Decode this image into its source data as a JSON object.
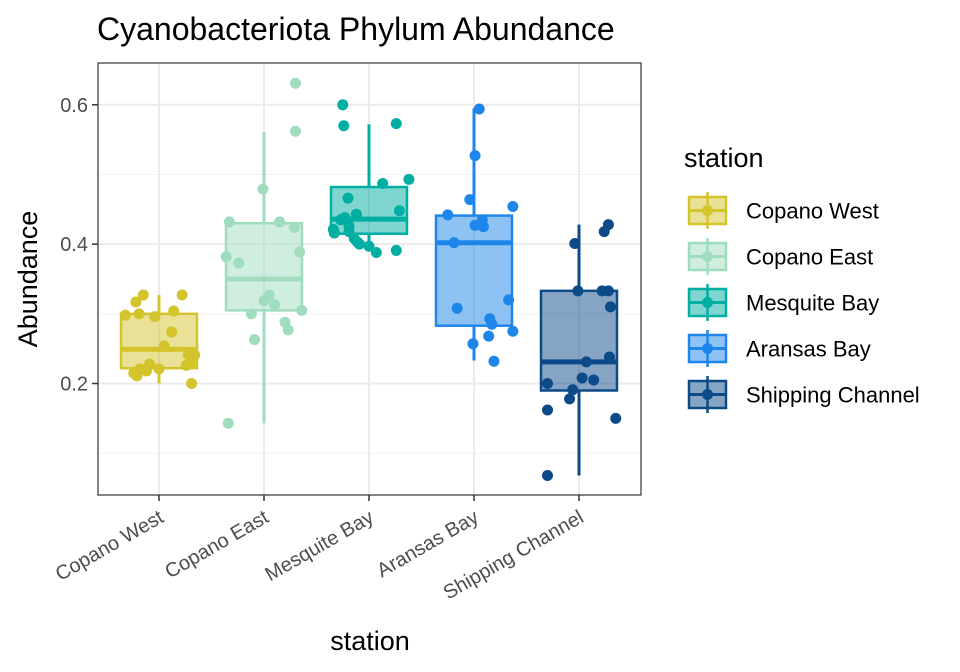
{
  "chart_data": {
    "type": "boxplot",
    "title": "Cyanobacteriota Phylum Abundance",
    "xlabel": "station",
    "ylabel": "Abundance",
    "ylim": [
      0.04,
      0.66
    ],
    "y_ticks": [
      0.2,
      0.4,
      0.6
    ],
    "y_tick_labels": [
      "0.2",
      "0.4",
      "0.6"
    ],
    "grid": true,
    "legend": {
      "title": "station",
      "position": "right"
    },
    "categories": [
      "Copano West",
      "Copano East",
      "Mesquite Bay",
      "Aransas Bay",
      "Shipping Channel"
    ],
    "series": [
      {
        "name": "Copano West",
        "color": "#D4C42C",
        "box": {
          "whisker_low": 0.2,
          "q1": 0.222,
          "median": 0.249,
          "q3": 0.3,
          "whisker_high": 0.327
        },
        "points": [
          [
            -0.32,
            0.298
          ],
          [
            -0.22,
            0.317
          ],
          [
            -0.15,
            0.327
          ],
          [
            -0.19,
            0.3
          ],
          [
            -0.04,
            0.296
          ],
          [
            0.14,
            0.304
          ],
          [
            0.22,
            0.327
          ],
          [
            0.12,
            0.274
          ],
          [
            0.05,
            0.254
          ],
          [
            -0.09,
            0.228
          ],
          [
            -0.18,
            0.221
          ],
          [
            -0.24,
            0.215
          ],
          [
            -0.12,
            0.218
          ],
          [
            -0.21,
            0.211
          ],
          [
            0.28,
            0.241
          ],
          [
            0.26,
            0.226
          ],
          [
            0.3,
            0.228
          ],
          [
            0.34,
            0.241
          ],
          [
            0.31,
            0.2
          ],
          [
            0.0,
            0.221
          ]
        ]
      },
      {
        "name": "Copano East",
        "color": "#A0DDBF",
        "box": {
          "whisker_low": 0.143,
          "q1": 0.305,
          "median": 0.35,
          "q3": 0.43,
          "whisker_high": 0.561
        },
        "points": [
          [
            0.3,
            0.631
          ],
          [
            0.3,
            0.562
          ],
          [
            -0.01,
            0.479
          ],
          [
            -0.33,
            0.432
          ],
          [
            0.15,
            0.432
          ],
          [
            0.29,
            0.424
          ],
          [
            -0.36,
            0.382
          ],
          [
            -0.24,
            0.373
          ],
          [
            0.34,
            0.389
          ],
          [
            0.05,
            0.327
          ],
          [
            0.0,
            0.319
          ],
          [
            0.1,
            0.313
          ],
          [
            -0.12,
            0.3
          ],
          [
            0.36,
            0.305
          ],
          [
            0.2,
            0.288
          ],
          [
            0.23,
            0.277
          ],
          [
            -0.09,
            0.263
          ],
          [
            -0.34,
            0.143
          ]
        ]
      },
      {
        "name": "Mesquite Bay",
        "color": "#00AEA2",
        "box": {
          "whisker_low": 0.4,
          "q1": 0.415,
          "median": 0.436,
          "q3": 0.482,
          "whisker_high": 0.572
        },
        "points": [
          [
            -0.25,
            0.6
          ],
          [
            -0.24,
            0.57
          ],
          [
            0.26,
            0.573
          ],
          [
            -0.2,
            0.466
          ],
          [
            0.13,
            0.487
          ],
          [
            0.38,
            0.493
          ],
          [
            0.29,
            0.448
          ],
          [
            -0.33,
            0.416
          ],
          [
            -0.34,
            0.421
          ],
          [
            -0.27,
            0.435
          ],
          [
            -0.23,
            0.438
          ],
          [
            -0.12,
            0.443
          ],
          [
            -0.19,
            0.426
          ],
          [
            -0.19,
            0.418
          ],
          [
            -0.14,
            0.408
          ],
          [
            -0.09,
            0.4
          ],
          [
            -0.11,
            0.403
          ],
          [
            0.07,
            0.388
          ],
          [
            0.26,
            0.391
          ],
          [
            0.0,
            0.397
          ]
        ]
      },
      {
        "name": "Aransas Bay",
        "color": "#1E86EA",
        "box": {
          "whisker_low": 0.233,
          "q1": 0.283,
          "median": 0.402,
          "q3": 0.441,
          "whisker_high": 0.595
        },
        "points": [
          [
            0.05,
            0.594
          ],
          [
            0.01,
            0.527
          ],
          [
            -0.04,
            0.464
          ],
          [
            0.37,
            0.454
          ],
          [
            -0.25,
            0.442
          ],
          [
            0.08,
            0.435
          ],
          [
            0.01,
            0.427
          ],
          [
            0.09,
            0.425
          ],
          [
            -0.19,
            0.402
          ],
          [
            -0.16,
            0.308
          ],
          [
            0.33,
            0.32
          ],
          [
            0.15,
            0.293
          ],
          [
            0.17,
            0.285
          ],
          [
            0.37,
            0.275
          ],
          [
            0.14,
            0.268
          ],
          [
            -0.01,
            0.257
          ],
          [
            0.19,
            0.232
          ]
        ]
      },
      {
        "name": "Shipping Channel",
        "color": "#0D4A88",
        "box": {
          "whisker_low": 0.068,
          "q1": 0.19,
          "median": 0.231,
          "q3": 0.333,
          "whisker_high": 0.428
        },
        "points": [
          [
            0.28,
            0.428
          ],
          [
            0.24,
            0.418
          ],
          [
            -0.04,
            0.401
          ],
          [
            -0.01,
            0.333
          ],
          [
            0.22,
            0.333
          ],
          [
            0.28,
            0.333
          ],
          [
            0.3,
            0.31
          ],
          [
            0.29,
            0.238
          ],
          [
            0.07,
            0.231
          ],
          [
            -0.3,
            0.2
          ],
          [
            0.14,
            0.205
          ],
          [
            0.03,
            0.208
          ],
          [
            -0.06,
            0.191
          ],
          [
            -0.09,
            0.178
          ],
          [
            -0.3,
            0.162
          ],
          [
            0.35,
            0.15
          ],
          [
            -0.3,
            0.068
          ]
        ]
      }
    ]
  }
}
